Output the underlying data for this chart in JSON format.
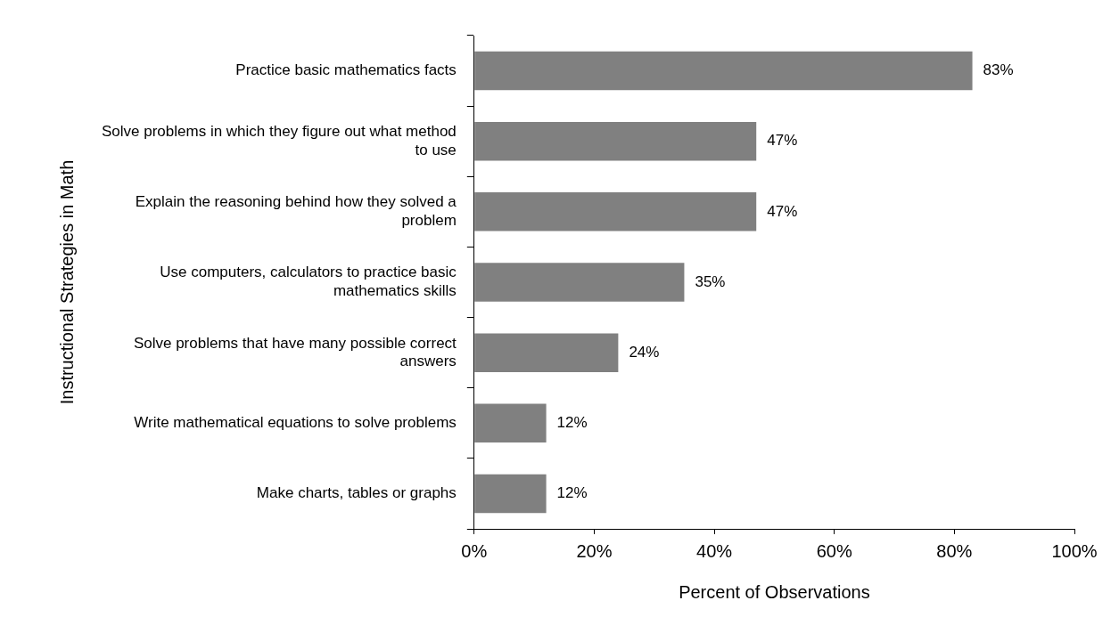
{
  "chart_data": {
    "type": "bar",
    "orientation": "horizontal",
    "xlabel": "Percent of Observations",
    "ylabel": "Instructional Strategies in Math",
    "categories": [
      "Practice basic mathematics facts",
      "Solve problems in which they figure out what method to use",
      "Explain the reasoning behind how they solved a problem",
      "Use computers, calculators to practice basic mathematics skills",
      "Solve problems that have many possible correct answers",
      "Write mathematical equations to solve problems",
      "Make charts, tables or graphs"
    ],
    "values": [
      83,
      47,
      47,
      35,
      24,
      12,
      12
    ],
    "value_labels": [
      "83%",
      "47%",
      "47%",
      "35%",
      "24%",
      "12%",
      "12%"
    ],
    "color": "#808080",
    "xlim": [
      0,
      100
    ],
    "xticks": [
      {
        "value": 0,
        "label": "0%"
      },
      {
        "value": 20,
        "label": "20%"
      },
      {
        "value": 40,
        "label": "40%"
      },
      {
        "value": 60,
        "label": "60%"
      },
      {
        "value": 80,
        "label": "80%"
      },
      {
        "value": 100,
        "label": "100%"
      }
    ],
    "grid": false,
    "legend": false
  }
}
